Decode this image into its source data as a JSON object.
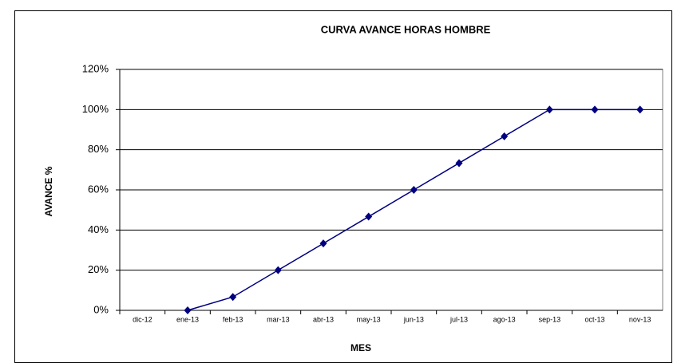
{
  "chart_data": {
    "type": "line",
    "title": "CURVA AVANCE HORAS HOMBRE",
    "x_label": "MES",
    "y_label": "AVANCE %",
    "categories": [
      "dic-12",
      "ene-13",
      "feb-13",
      "mar-13",
      "abr-13",
      "may-13",
      "jun-13",
      "jul-13",
      "ago-13",
      "sep-13",
      "oct-13",
      "nov-13"
    ],
    "series": [
      {
        "color": "#000080",
        "values": [
          null,
          0,
          6.67,
          20,
          33.33,
          46.67,
          60,
          73.33,
          86.67,
          100,
          100,
          100
        ]
      }
    ],
    "ylim": [
      0,
      120
    ],
    "yticks": [
      {
        "value": 0,
        "label": "0%"
      },
      {
        "value": 20,
        "label": "20%"
      },
      {
        "value": 40,
        "label": "40%"
      },
      {
        "value": 60,
        "label": "60%"
      },
      {
        "value": 80,
        "label": "80%"
      },
      {
        "value": 100,
        "label": "100%"
      },
      {
        "value": 120,
        "label": "120%"
      }
    ],
    "grid": true
  }
}
